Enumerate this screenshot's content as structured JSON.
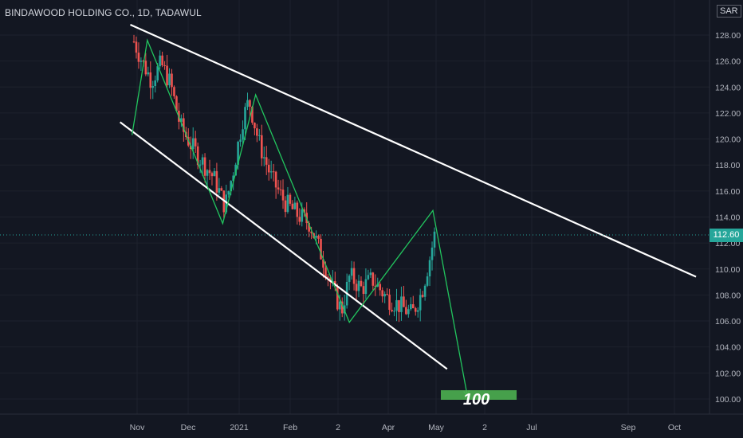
{
  "chart_title": "BINDAWOOD HOLDING CO., 1D, TADAWUL",
  "currency": "SAR",
  "last_price_label": "112.60",
  "target_label": "100",
  "colors": {
    "background": "#131722",
    "grid": "#1e222d",
    "up": "#26a69a",
    "down": "#ef5350",
    "channel": "#ffffff",
    "wave": "#22c55e",
    "target_box": "#4caf50",
    "axis_text": "#b2b5be"
  },
  "chart_data": {
    "type": "candlestick",
    "title": "BINDAWOOD HOLDING CO., 1D, TADAWUL",
    "y_axis": {
      "min": 99,
      "max": 130,
      "ticks": [
        "100.00",
        "102.00",
        "104.00",
        "106.00",
        "108.00",
        "110.00",
        "112.00",
        "114.00",
        "116.00",
        "118.00",
        "120.00",
        "122.00",
        "124.00",
        "126.00",
        "128.00"
      ]
    },
    "x_axis": {
      "ticks": [
        "Nov",
        "Dec",
        "2021",
        "Feb",
        "2",
        "Apr",
        "May",
        "2",
        "Jul",
        "Sep",
        "Oct"
      ]
    },
    "grid": true,
    "last_price": 112.6,
    "price_path": [
      {
        "date": "2020-10-28",
        "price": 127.5
      },
      {
        "date": "2020-11-02",
        "price": 126.0
      },
      {
        "date": "2020-11-08",
        "price": 124.5
      },
      {
        "date": "2020-11-14",
        "price": 125.8
      },
      {
        "date": "2020-11-20",
        "price": 124.2
      },
      {
        "date": "2020-11-26",
        "price": 121.0
      },
      {
        "date": "2020-12-03",
        "price": 119.5
      },
      {
        "date": "2020-12-10",
        "price": 118.2
      },
      {
        "date": "2020-12-17",
        "price": 117.0
      },
      {
        "date": "2020-12-24",
        "price": 114.8
      },
      {
        "date": "2020-12-29",
        "price": 117.5
      },
      {
        "date": "2021-01-04",
        "price": 121.5
      },
      {
        "date": "2021-01-08",
        "price": 123.0
      },
      {
        "date": "2021-01-14",
        "price": 119.8
      },
      {
        "date": "2021-01-22",
        "price": 117.0
      },
      {
        "date": "2021-01-30",
        "price": 115.2
      },
      {
        "date": "2021-02-07",
        "price": 114.2
      },
      {
        "date": "2021-02-15",
        "price": 113.5
      },
      {
        "date": "2021-02-24",
        "price": 110.5
      },
      {
        "date": "2021-03-02",
        "price": 108.2
      },
      {
        "date": "2021-03-07",
        "price": 106.8
      },
      {
        "date": "2021-03-12",
        "price": 109.5
      },
      {
        "date": "2021-03-19",
        "price": 108.5
      },
      {
        "date": "2021-03-26",
        "price": 109.2
      },
      {
        "date": "2021-04-04",
        "price": 107.8
      },
      {
        "date": "2021-04-12",
        "price": 107.2
      },
      {
        "date": "2021-04-20",
        "price": 106.5
      },
      {
        "date": "2021-04-26",
        "price": 108.2
      },
      {
        "date": "2021-05-01",
        "price": 110.8
      },
      {
        "date": "2021-05-04",
        "price": 112.6
      }
    ],
    "channel_upper": [
      {
        "date": "2020-10-28",
        "price": 128.8
      },
      {
        "date": "2021-10-15",
        "price": 109.4
      }
    ],
    "channel_lower": [
      {
        "date": "2020-10-22",
        "price": 121.3
      },
      {
        "date": "2021-05-08",
        "price": 102.3
      }
    ],
    "wave_path": [
      {
        "date": "2020-10-29",
        "price": 120.3
      },
      {
        "date": "2020-11-07",
        "price": 127.6
      },
      {
        "date": "2020-12-22",
        "price": 113.5
      },
      {
        "date": "2021-01-11",
        "price": 123.4
      },
      {
        "date": "2021-03-08",
        "price": 105.9
      },
      {
        "date": "2021-04-29",
        "price": 114.5
      },
      {
        "date": "2021-05-21",
        "price": 100.2
      }
    ],
    "target": {
      "price": 100,
      "date_start": "2021-04-30",
      "date_end": "2021-06-30"
    }
  }
}
